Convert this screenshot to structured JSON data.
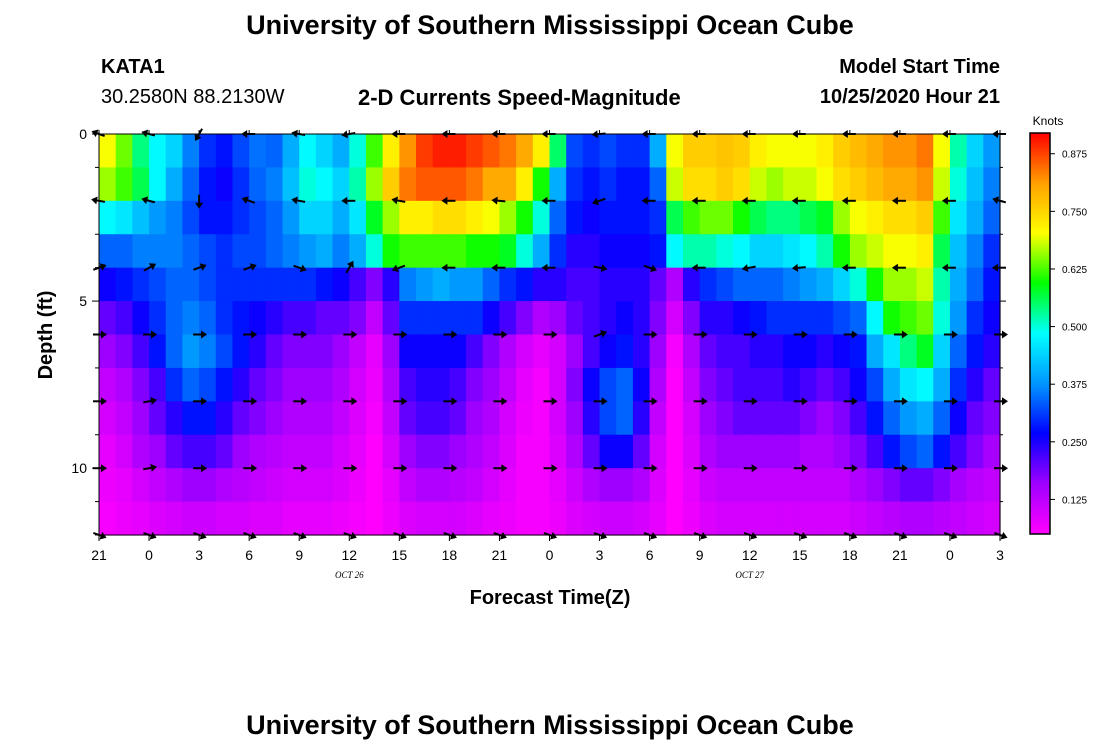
{
  "header": {
    "title_top": "University of Southern Mississippi Ocean Cube",
    "station_id": "KATA1",
    "station_coords": "30.2580N 88.2130W",
    "plot_title": "2-D Currents Speed-Magnitude",
    "model_label": "Model Start Time",
    "model_start": "10/25/2020 Hour 21",
    "title_bottom": "University of Southern Mississippi Ocean Cube"
  },
  "chart_data": {
    "type": "heatmap",
    "title": "2-D Currents Speed-Magnitude",
    "xlabel": "Forecast Time(Z)",
    "ylabel": "Depth (ft)",
    "x_range_hours": [
      0,
      54
    ],
    "x_tick_labels": [
      "21",
      "0",
      "3",
      "6",
      "9",
      "12",
      "15",
      "18",
      "21",
      "0",
      "3",
      "6",
      "9",
      "12",
      "15",
      "18",
      "21",
      "0",
      "3"
    ],
    "date_labels": [
      {
        "label": "OCT 26",
        "hour": 15
      },
      {
        "label": "OCT 27",
        "hour": 39
      }
    ],
    "ylim": [
      0,
      12
    ],
    "y_ticks": [
      0,
      5,
      10
    ],
    "colorbar": {
      "unit": "Knots",
      "ticks": [
        0.125,
        0.25,
        0.375,
        0.5,
        0.625,
        0.75,
        0.875
      ],
      "tick_labels": [
        "0.125",
        "0.250",
        "0.375",
        "0.500",
        "0.625",
        "0.750",
        "0.875"
      ],
      "range": [
        0.05,
        0.92
      ],
      "stops": [
        "#ff00ff",
        "#a000ff",
        "#0000ff",
        "#0096ff",
        "#00ffff",
        "#00ff00",
        "#ffff00",
        "#ffa000",
        "#ff0000"
      ]
    },
    "depth_levels_ft": [
      0.5,
      1.5,
      2.5,
      3.5,
      4.5,
      5.5,
      6.5,
      7.5,
      8.5,
      9.5,
      10.5,
      11.5
    ],
    "speed_knots": [
      [
        0.7,
        0.64,
        0.54,
        0.48,
        0.44,
        0.36,
        0.3,
        0.28,
        0.32,
        0.35,
        0.34,
        0.4,
        0.48,
        0.44,
        0.4,
        0.5,
        0.62,
        0.72,
        0.82,
        0.88,
        0.9,
        0.9,
        0.88,
        0.86,
        0.84,
        0.8,
        0.72,
        0.55,
        0.32,
        0.3,
        0.32,
        0.3,
        0.3,
        0.4,
        0.7,
        0.76,
        0.76,
        0.77,
        0.76,
        0.72,
        0.7,
        0.7,
        0.7,
        0.72,
        0.76,
        0.78,
        0.8,
        0.82,
        0.82,
        0.84,
        0.7,
        0.52,
        0.44,
        0.38
      ],
      [
        0.66,
        0.62,
        0.56,
        0.48,
        0.4,
        0.34,
        0.28,
        0.26,
        0.3,
        0.34,
        0.36,
        0.42,
        0.5,
        0.48,
        0.44,
        0.52,
        0.66,
        0.76,
        0.84,
        0.86,
        0.86,
        0.86,
        0.84,
        0.8,
        0.8,
        0.72,
        0.6,
        0.4,
        0.3,
        0.28,
        0.3,
        0.28,
        0.28,
        0.34,
        0.68,
        0.74,
        0.74,
        0.76,
        0.74,
        0.68,
        0.66,
        0.68,
        0.68,
        0.7,
        0.74,
        0.76,
        0.78,
        0.8,
        0.8,
        0.82,
        0.68,
        0.5,
        0.42,
        0.36
      ],
      [
        0.48,
        0.46,
        0.42,
        0.38,
        0.36,
        0.32,
        0.28,
        0.28,
        0.3,
        0.32,
        0.34,
        0.38,
        0.44,
        0.44,
        0.4,
        0.46,
        0.58,
        0.66,
        0.72,
        0.72,
        0.74,
        0.74,
        0.72,
        0.7,
        0.66,
        0.6,
        0.5,
        0.34,
        0.28,
        0.26,
        0.28,
        0.28,
        0.28,
        0.3,
        0.56,
        0.62,
        0.64,
        0.64,
        0.6,
        0.56,
        0.54,
        0.54,
        0.56,
        0.58,
        0.66,
        0.7,
        0.72,
        0.74,
        0.74,
        0.76,
        0.62,
        0.46,
        0.4,
        0.34
      ],
      [
        0.34,
        0.34,
        0.36,
        0.36,
        0.36,
        0.34,
        0.32,
        0.3,
        0.32,
        0.32,
        0.34,
        0.36,
        0.38,
        0.4,
        0.36,
        0.4,
        0.5,
        0.6,
        0.62,
        0.62,
        0.62,
        0.62,
        0.6,
        0.6,
        0.58,
        0.5,
        0.4,
        0.3,
        0.24,
        0.24,
        0.26,
        0.26,
        0.26,
        0.28,
        0.48,
        0.52,
        0.52,
        0.5,
        0.48,
        0.44,
        0.44,
        0.46,
        0.48,
        0.52,
        0.6,
        0.66,
        0.68,
        0.7,
        0.7,
        0.72,
        0.56,
        0.42,
        0.36,
        0.3
      ],
      [
        0.26,
        0.28,
        0.3,
        0.32,
        0.34,
        0.34,
        0.32,
        0.3,
        0.3,
        0.3,
        0.3,
        0.3,
        0.3,
        0.28,
        0.26,
        0.22,
        0.18,
        0.24,
        0.36,
        0.38,
        0.4,
        0.38,
        0.38,
        0.34,
        0.3,
        0.28,
        0.24,
        0.24,
        0.22,
        0.22,
        0.24,
        0.24,
        0.24,
        0.2,
        0.14,
        0.24,
        0.3,
        0.32,
        0.34,
        0.34,
        0.34,
        0.36,
        0.38,
        0.4,
        0.44,
        0.5,
        0.6,
        0.66,
        0.66,
        0.68,
        0.52,
        0.4,
        0.34,
        0.28
      ],
      [
        0.2,
        0.22,
        0.26,
        0.3,
        0.34,
        0.36,
        0.34,
        0.3,
        0.28,
        0.26,
        0.24,
        0.22,
        0.22,
        0.2,
        0.2,
        0.18,
        0.12,
        0.2,
        0.3,
        0.3,
        0.3,
        0.3,
        0.3,
        0.26,
        0.22,
        0.18,
        0.14,
        0.16,
        0.2,
        0.22,
        0.24,
        0.26,
        0.24,
        0.18,
        0.1,
        0.18,
        0.24,
        0.24,
        0.26,
        0.28,
        0.3,
        0.3,
        0.3,
        0.3,
        0.32,
        0.34,
        0.48,
        0.6,
        0.62,
        0.64,
        0.5,
        0.38,
        0.3,
        0.26
      ],
      [
        0.16,
        0.18,
        0.22,
        0.28,
        0.34,
        0.38,
        0.36,
        0.32,
        0.28,
        0.24,
        0.2,
        0.18,
        0.18,
        0.18,
        0.16,
        0.12,
        0.08,
        0.16,
        0.26,
        0.26,
        0.26,
        0.26,
        0.22,
        0.18,
        0.14,
        0.1,
        0.08,
        0.1,
        0.16,
        0.22,
        0.26,
        0.28,
        0.24,
        0.16,
        0.06,
        0.14,
        0.2,
        0.22,
        0.22,
        0.24,
        0.24,
        0.26,
        0.26,
        0.24,
        0.26,
        0.28,
        0.4,
        0.46,
        0.54,
        0.58,
        0.44,
        0.34,
        0.28,
        0.24
      ],
      [
        0.12,
        0.14,
        0.18,
        0.22,
        0.3,
        0.34,
        0.32,
        0.28,
        0.24,
        0.2,
        0.18,
        0.16,
        0.16,
        0.16,
        0.14,
        0.1,
        0.07,
        0.14,
        0.22,
        0.24,
        0.24,
        0.22,
        0.18,
        0.16,
        0.12,
        0.08,
        0.06,
        0.1,
        0.18,
        0.26,
        0.32,
        0.34,
        0.26,
        0.14,
        0.05,
        0.12,
        0.18,
        0.2,
        0.22,
        0.22,
        0.22,
        0.24,
        0.22,
        0.2,
        0.22,
        0.26,
        0.32,
        0.4,
        0.46,
        0.48,
        0.4,
        0.3,
        0.24,
        0.2
      ],
      [
        0.1,
        0.12,
        0.16,
        0.2,
        0.24,
        0.28,
        0.28,
        0.24,
        0.2,
        0.18,
        0.16,
        0.14,
        0.14,
        0.14,
        0.12,
        0.09,
        0.06,
        0.12,
        0.2,
        0.22,
        0.22,
        0.2,
        0.16,
        0.14,
        0.1,
        0.07,
        0.06,
        0.1,
        0.16,
        0.24,
        0.32,
        0.34,
        0.24,
        0.12,
        0.05,
        0.1,
        0.16,
        0.18,
        0.2,
        0.2,
        0.2,
        0.2,
        0.18,
        0.16,
        0.18,
        0.22,
        0.28,
        0.34,
        0.38,
        0.4,
        0.34,
        0.26,
        0.2,
        0.18
      ],
      [
        0.08,
        0.1,
        0.14,
        0.16,
        0.2,
        0.22,
        0.22,
        0.2,
        0.16,
        0.14,
        0.13,
        0.12,
        0.12,
        0.12,
        0.1,
        0.08,
        0.05,
        0.1,
        0.16,
        0.18,
        0.18,
        0.16,
        0.14,
        0.12,
        0.09,
        0.06,
        0.06,
        0.09,
        0.14,
        0.2,
        0.26,
        0.26,
        0.2,
        0.1,
        0.05,
        0.09,
        0.14,
        0.16,
        0.16,
        0.16,
        0.16,
        0.16,
        0.14,
        0.14,
        0.16,
        0.18,
        0.22,
        0.28,
        0.32,
        0.34,
        0.28,
        0.22,
        0.18,
        0.15
      ],
      [
        0.07,
        0.08,
        0.1,
        0.12,
        0.14,
        0.16,
        0.16,
        0.14,
        0.13,
        0.12,
        0.11,
        0.1,
        0.1,
        0.1,
        0.09,
        0.07,
        0.05,
        0.08,
        0.12,
        0.14,
        0.14,
        0.13,
        0.12,
        0.1,
        0.08,
        0.06,
        0.06,
        0.08,
        0.11,
        0.14,
        0.16,
        0.16,
        0.14,
        0.09,
        0.05,
        0.08,
        0.11,
        0.12,
        0.12,
        0.12,
        0.12,
        0.12,
        0.12,
        0.12,
        0.12,
        0.14,
        0.16,
        0.18,
        0.2,
        0.2,
        0.18,
        0.15,
        0.13,
        0.12
      ],
      [
        0.06,
        0.07,
        0.08,
        0.09,
        0.1,
        0.11,
        0.11,
        0.1,
        0.1,
        0.09,
        0.09,
        0.08,
        0.08,
        0.08,
        0.07,
        0.06,
        0.05,
        0.07,
        0.09,
        0.1,
        0.1,
        0.1,
        0.09,
        0.08,
        0.07,
        0.06,
        0.06,
        0.07,
        0.09,
        0.1,
        0.11,
        0.11,
        0.1,
        0.08,
        0.05,
        0.07,
        0.09,
        0.1,
        0.1,
        0.1,
        0.1,
        0.1,
        0.1,
        0.1,
        0.1,
        0.11,
        0.12,
        0.13,
        0.14,
        0.14,
        0.13,
        0.12,
        0.11,
        0.1
      ]
    ],
    "vector_arrows": {
      "hours": [
        0,
        3,
        6,
        9,
        12,
        15,
        18,
        21,
        24,
        27,
        30,
        33,
        36,
        39,
        42,
        45,
        48,
        51,
        54
      ],
      "depths_ft": [
        0,
        2,
        4,
        6,
        8,
        10,
        12
      ],
      "direction_deg": [
        [
          200,
          195,
          120,
          180,
          190,
          170,
          180,
          180,
          180,
          180,
          175,
          180,
          180,
          180,
          180,
          180,
          180,
          180,
          180
        ],
        [
          190,
          195,
          90,
          200,
          190,
          180,
          190,
          180,
          185,
          180,
          160,
          180,
          180,
          180,
          180,
          180,
          180,
          180,
          195
        ],
        [
          340,
          330,
          340,
          340,
          20,
          300,
          160,
          180,
          180,
          180,
          10,
          20,
          180,
          170,
          175,
          180,
          180,
          180,
          180
        ],
        [
          0,
          0,
          0,
          0,
          0,
          0,
          0,
          0,
          0,
          0,
          340,
          0,
          0,
          0,
          0,
          0,
          0,
          0,
          0
        ],
        [
          0,
          350,
          0,
          0,
          0,
          0,
          0,
          0,
          0,
          0,
          0,
          0,
          0,
          0,
          0,
          0,
          0,
          0,
          0
        ],
        [
          0,
          350,
          0,
          0,
          0,
          0,
          0,
          0,
          0,
          0,
          0,
          0,
          0,
          0,
          0,
          0,
          0,
          0,
          0
        ],
        [
          20,
          20,
          20,
          20,
          20,
          20,
          20,
          20,
          20,
          20,
          20,
          20,
          20,
          20,
          20,
          20,
          20,
          20,
          20
        ]
      ]
    }
  }
}
